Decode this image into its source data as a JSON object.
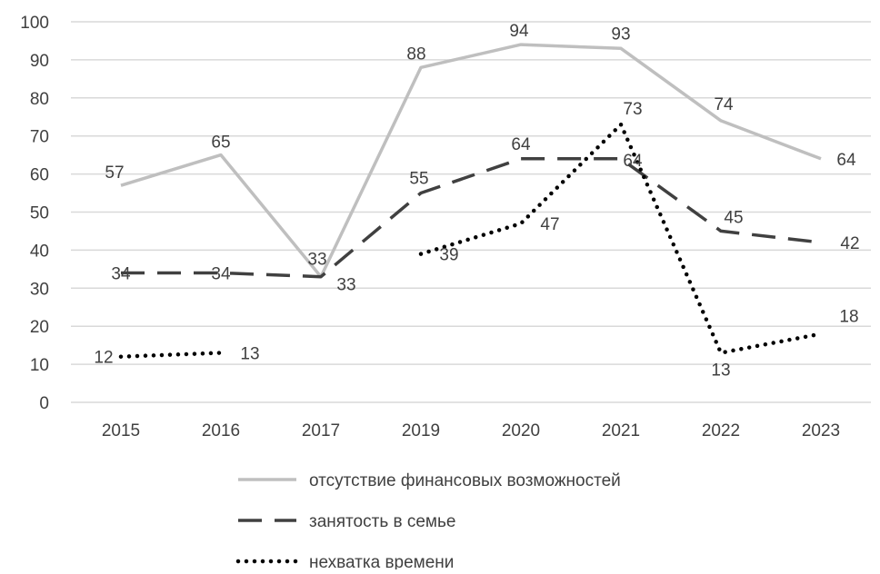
{
  "chart_data": {
    "type": "line",
    "title": "",
    "xlabel": "",
    "ylabel": "",
    "categories": [
      "2015",
      "2016",
      "2017",
      "2019",
      "2020",
      "2021",
      "2022",
      "2023"
    ],
    "ylim": [
      0,
      100
    ],
    "yticks": [
      0,
      10,
      20,
      30,
      40,
      50,
      60,
      70,
      80,
      90,
      100
    ],
    "grid": true,
    "legend_position": "bottom",
    "series": [
      {
        "name": "отсутствие финансовых возможностей",
        "values": [
          57,
          65,
          33,
          88,
          94,
          93,
          74,
          64
        ],
        "color": "#bfbfbf",
        "style": "solid"
      },
      {
        "name": "занятость в семье",
        "values": [
          34,
          34,
          33,
          55,
          64,
          64,
          45,
          42
        ],
        "color": "#404040",
        "style": "dashed"
      },
      {
        "name": "нехватка времени",
        "values": [
          12,
          13,
          null,
          39,
          47,
          73,
          13,
          18
        ],
        "color": "#000000",
        "style": "dotted"
      }
    ]
  }
}
